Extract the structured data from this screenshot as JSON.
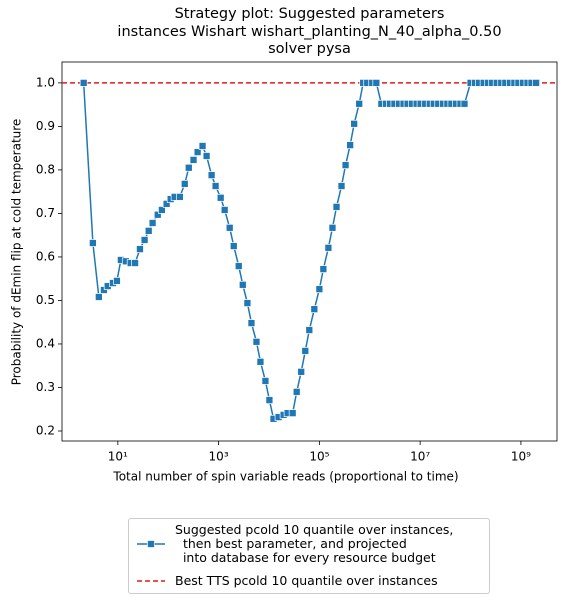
{
  "chart_data": {
    "type": "line",
    "title": "Strategy plot: Suggested parameters\ninstances Wishart wishart_planting_N_40_alpha_0.50\nsolver pysa",
    "x_label": "Total number of spin variable reads (proportional to time)",
    "y_label": "Probability of dEmin flip at cold temperature",
    "x_scale": "log",
    "xlim": [
      0.78,
      5200000000
    ],
    "ylim": [
      0.177,
      1.048
    ],
    "xticks": [
      {
        "value": 10,
        "label": "10¹"
      },
      {
        "value": 1000,
        "label": "10³"
      },
      {
        "value": 100000,
        "label": "10⁵"
      },
      {
        "value": 10000000,
        "label": "10⁷"
      },
      {
        "value": 1000000000,
        "label": "10⁹"
      }
    ],
    "yticks": [
      0.2,
      0.3,
      0.4,
      0.5,
      0.6,
      0.7,
      0.8,
      0.9,
      {
        "value": 1,
        "label": "1.0"
      }
    ],
    "x": [
      2.1,
      3.2,
      4.2,
      5.3,
      6.3,
      8,
      9.6,
      11.5,
      14.4,
      18,
      22,
      27.5,
      34,
      41,
      49,
      62,
      75,
      93,
      112,
      134,
      170,
      213,
      256,
      318,
      383,
      480,
      578,
      726,
      872,
      1100,
      1320,
      1660,
      2000,
      2510,
      3020,
      3730,
      4490,
      5640,
      6770,
      8500,
      10200,
      12300,
      15500,
      19500,
      23400,
      29500,
      35500,
      43600,
      52500,
      63100,
      79400,
      100000,
      120000,
      151000,
      182000,
      219000,
      275000,
      331000,
      408000,
      490000,
      617000,
      741000,
      891000,
      1120000,
      1350000,
      1700000,
      2090000,
      2510000,
      3090000,
      3800000,
      4680000,
      5620000,
      6920000,
      8510000,
      10200000,
      12600000,
      15500000,
      18600000,
      22900000,
      28200000,
      34700000,
      41700000,
      51300000,
      63100000,
      75900000,
      100000000,
      123000000,
      148000000,
      182000000,
      224000000,
      269000000,
      331000000,
      407000000,
      490000000,
      603000000,
      741000000,
      891000000,
      1100000000,
      1350000000,
      1620000000,
      2000000000
    ],
    "series": [
      {
        "name": "Suggested pcold 10 quantile over instances,\n  then best parameter, and projected\n  into database for every resource budget",
        "color": "#1f77b4",
        "values": [
          1.0,
          0.632,
          0.508,
          0.524,
          0.533,
          0.54,
          0.545,
          0.593,
          0.59,
          0.586,
          0.586,
          0.618,
          0.639,
          0.66,
          0.678,
          0.697,
          0.708,
          0.722,
          0.733,
          0.738,
          0.738,
          0.768,
          0.805,
          0.823,
          0.841,
          0.855,
          0.832,
          0.788,
          0.763,
          0.736,
          0.708,
          0.667,
          0.625,
          0.579,
          0.536,
          0.494,
          0.448,
          0.405,
          0.359,
          0.315,
          0.271,
          0.228,
          0.232,
          0.237,
          0.241,
          0.241,
          0.29,
          0.336,
          0.384,
          0.432,
          0.48,
          0.526,
          0.572,
          0.621,
          0.667,
          0.715,
          0.763,
          0.811,
          0.857,
          0.906,
          0.952,
          1.0,
          1.0,
          1.0,
          1.0,
          0.952,
          0.952,
          0.952,
          0.952,
          0.952,
          0.952,
          0.952,
          0.952,
          0.952,
          0.952,
          0.952,
          0.952,
          0.952,
          0.952,
          0.952,
          0.952,
          0.952,
          0.952,
          0.952,
          0.952,
          1.0,
          1.0,
          1.0,
          1.0,
          1.0,
          1.0,
          1.0,
          1.0,
          1.0,
          1.0,
          1.0,
          1.0,
          1.0,
          1.0,
          1.0,
          1.0
        ]
      }
    ],
    "reference_lines": [
      {
        "name": "Best TTS pcold 10 quantile over instances",
        "color": "#e41a1c",
        "value": 1
      }
    ]
  }
}
